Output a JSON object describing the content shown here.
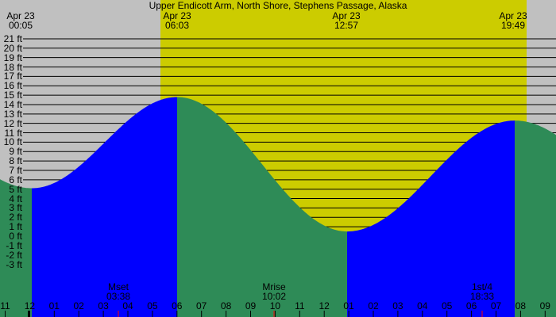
{
  "chart_data": {
    "type": "area",
    "title": "Upper Endicott Arm, North Shore, Stephens Passage, Alaska",
    "xlabel": "",
    "ylabel": "",
    "y_unit": "ft",
    "ylim": [
      -3,
      21
    ],
    "y_ticks": [
      "21 ft",
      "20 ft",
      "19 ft",
      "18 ft",
      "17 ft",
      "16 ft",
      "15 ft",
      "14 ft",
      "13 ft",
      "12 ft",
      "11 ft",
      "10 ft",
      "9 ft",
      "8 ft",
      "7 ft",
      "6 ft",
      "5 ft",
      "4 ft",
      "3 ft",
      "2 ft",
      "1 ft",
      "0 ft",
      "-1 ft",
      "-2 ft",
      "-3 ft"
    ],
    "x_ticks": [
      "11",
      "12",
      "01",
      "02",
      "03",
      "04",
      "05",
      "06",
      "07",
      "08",
      "09",
      "10",
      "11",
      "12",
      "01",
      "02",
      "03",
      "04",
      "05",
      "06",
      "07",
      "08",
      "09"
    ],
    "grid": true,
    "top_annotations": [
      {
        "date": "Apr 23",
        "time": "00:05",
        "label": "sunrise/sunset marker"
      },
      {
        "date": "Apr 23",
        "time": "06:03"
      },
      {
        "date": "Apr 23",
        "time": "12:57"
      },
      {
        "date": "Apr 23",
        "time": "19:49"
      }
    ],
    "bottom_annotations": [
      {
        "label": "Mset",
        "time": "03:38"
      },
      {
        "label": "Mrise",
        "time": "10:02"
      },
      {
        "label": "1st/4",
        "time": "18:33"
      }
    ],
    "tide_extremes": [
      {
        "type": "low",
        "time": "00:05",
        "height_ft": 5.1
      },
      {
        "type": "high",
        "time": "06:03",
        "height_ft": 14.8
      },
      {
        "type": "low",
        "time": "12:57",
        "height_ft": 0.5
      },
      {
        "type": "high",
        "time": "19:49",
        "height_ft": 12.3
      }
    ],
    "series": [
      {
        "name": "Tide height",
        "x": [
          "23:00",
          "00:05",
          "03:00",
          "06:03",
          "09:30",
          "12:57",
          "16:20",
          "19:49",
          "21:00"
        ],
        "values": [
          6.0,
          5.1,
          9.8,
          14.8,
          7.6,
          0.5,
          6.4,
          12.3,
          11.7
        ]
      }
    ],
    "daylight": {
      "start": "06:03",
      "end": "19:49"
    }
  },
  "colors": {
    "night": "#c0c0c0",
    "day": "#cccc00",
    "rising": "#0000ff",
    "falling": "#2e8b57",
    "moon_tick": "#ff0000"
  }
}
